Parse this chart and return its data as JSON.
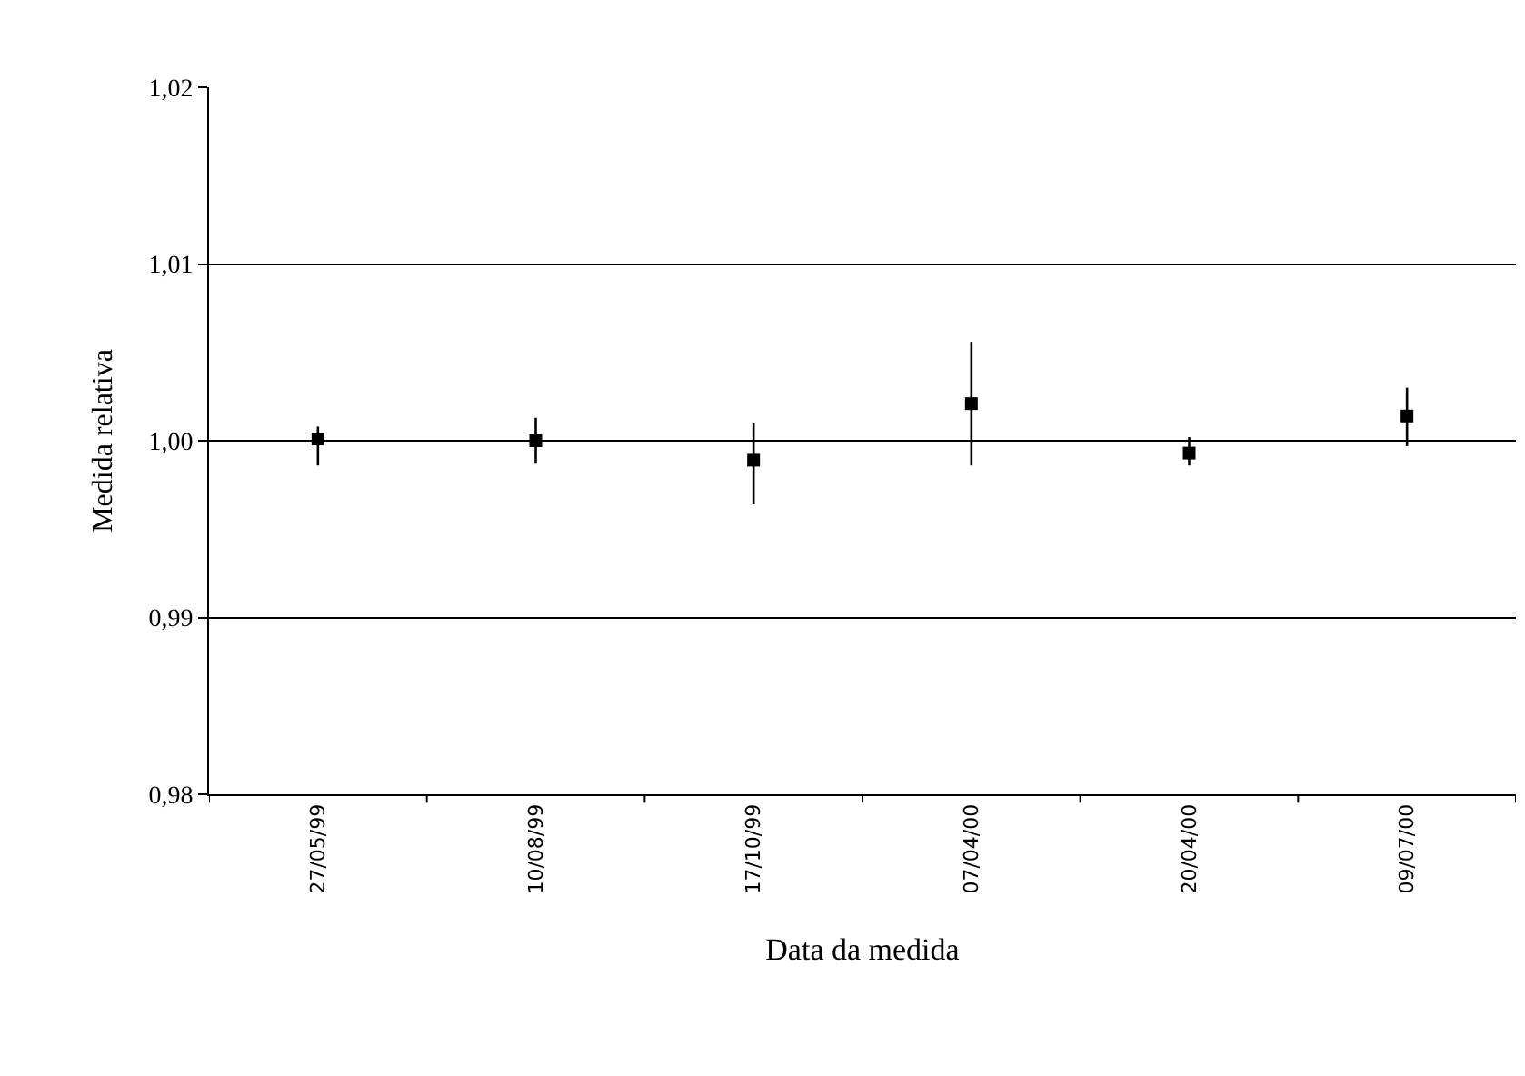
{
  "chart_data": {
    "type": "scatter",
    "xlabel": "Data da medida",
    "ylabel": "Medida relativa",
    "categories": [
      "27/05/99",
      "10/08/99",
      "17/10/99",
      "07/04/00",
      "20/04/00",
      "09/07/00"
    ],
    "series": [
      {
        "color": "#000000",
        "values": [
          1.0001,
          1.0,
          0.9989,
          1.0021,
          0.9993,
          1.0014
        ],
        "errors": [
          [
            0.9986,
            1.0008
          ],
          [
            0.9987,
            1.0013
          ],
          [
            0.9964,
            1.001
          ],
          [
            0.9986,
            1.0056
          ],
          [
            0.9986,
            1.0002
          ],
          [
            0.9997,
            1.003
          ]
        ]
      }
    ],
    "ylim": [
      0.98,
      1.02
    ],
    "yticks": [
      {
        "value": 0.98,
        "label": "0,98"
      },
      {
        "value": 0.99,
        "label": "0,99"
      },
      {
        "value": 1.0,
        "label": "1,00"
      },
      {
        "value": 1.01,
        "label": "1,01"
      },
      {
        "value": 1.02,
        "label": "1,02"
      }
    ],
    "grid": "y",
    "marker": "square"
  }
}
